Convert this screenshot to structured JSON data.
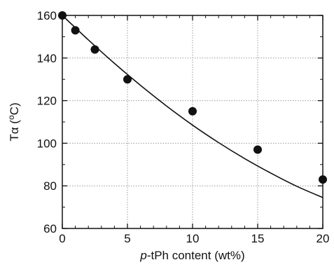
{
  "chart_data": {
    "type": "scatter",
    "xlabel_italic": "p",
    "xlabel_rest": "-tPh content (wt%)",
    "ylabel_main": "Tα (",
    "ylabel_sup": "o",
    "ylabel_unit": "C)",
    "xlim": [
      0,
      20
    ],
    "ylim": [
      60,
      160
    ],
    "xticks": [
      0,
      5,
      10,
      15,
      20
    ],
    "yticks": [
      60,
      80,
      100,
      120,
      140,
      160
    ],
    "x_minor_ticks": [
      1,
      2,
      3,
      4,
      6,
      7,
      8,
      9,
      11,
      12,
      13,
      14,
      16,
      17,
      18,
      19
    ],
    "y_minor_ticks": [
      70,
      90,
      110,
      130,
      150
    ],
    "grid": true,
    "series": [
      {
        "kind": "points",
        "x": [
          0,
          1,
          2.5,
          5,
          10,
          15,
          20
        ],
        "y": [
          160,
          153,
          144,
          130,
          115,
          97,
          83
        ]
      },
      {
        "kind": "fit-curve",
        "x": [
          0,
          2,
          4,
          6,
          8,
          10,
          12,
          14,
          16,
          18,
          20
        ],
        "y": [
          160,
          148.5,
          137.5,
          127.2,
          117.5,
          108.5,
          100.3,
          92.8,
          86,
          79.8,
          74.5
        ]
      }
    ]
  }
}
